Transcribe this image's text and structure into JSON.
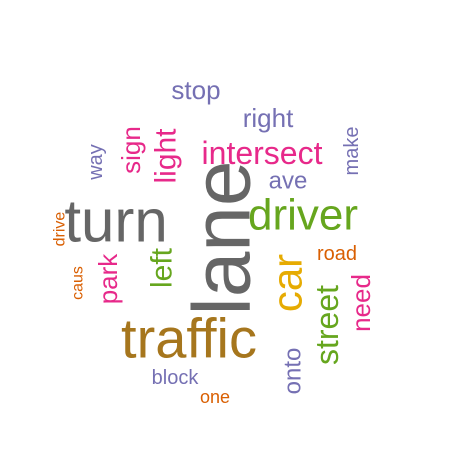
{
  "words": [
    {
      "text": "lane",
      "color": "#666666"
    },
    {
      "text": "turn",
      "color": "#666666"
    },
    {
      "text": "traffic",
      "color": "#a6761d"
    },
    {
      "text": "driver",
      "color": "#66a61e"
    },
    {
      "text": "car",
      "color": "#e6ab02"
    },
    {
      "text": "intersect",
      "color": "#e7298a"
    },
    {
      "text": "street",
      "color": "#66a61e"
    },
    {
      "text": "light",
      "color": "#e7298a"
    },
    {
      "text": "left",
      "color": "#66a61e"
    },
    {
      "text": "park",
      "color": "#e7298a"
    },
    {
      "text": "sign",
      "color": "#e7298a"
    },
    {
      "text": "need",
      "color": "#e7298a"
    },
    {
      "text": "right",
      "color": "#7570b3"
    },
    {
      "text": "stop",
      "color": "#7570b3"
    },
    {
      "text": "ave",
      "color": "#7570b3"
    },
    {
      "text": "onto",
      "color": "#7570b3"
    },
    {
      "text": "make",
      "color": "#7570b3"
    },
    {
      "text": "block",
      "color": "#7570b3"
    },
    {
      "text": "way",
      "color": "#7570b3"
    },
    {
      "text": "road",
      "color": "#d95f02"
    },
    {
      "text": "drive",
      "color": "#d95f02"
    },
    {
      "text": "caus",
      "color": "#d95f02"
    },
    {
      "text": "one",
      "color": "#d95f02"
    }
  ]
}
